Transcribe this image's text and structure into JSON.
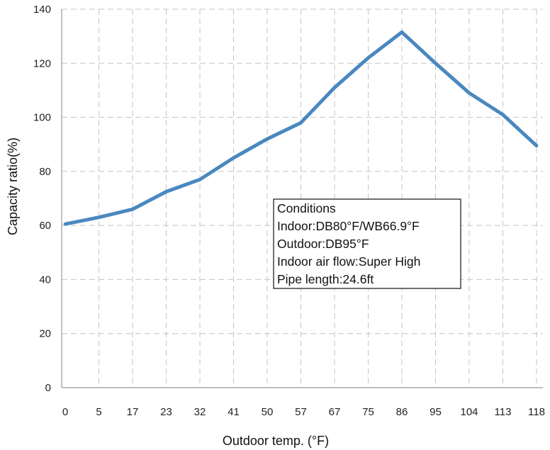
{
  "chart_data": {
    "type": "line",
    "title": "",
    "xlabel": "Outdoor temp. (°F)",
    "ylabel": "Capacity ratio(%)",
    "categories": [
      "0",
      "5",
      "17",
      "23",
      "32",
      "41",
      "50",
      "57",
      "67",
      "75",
      "86",
      "95",
      "104",
      "113",
      "118"
    ],
    "series": [
      {
        "values": [
          60.5,
          63,
          66,
          72.5,
          77,
          85,
          92,
          98,
          111,
          122,
          131.5,
          120,
          109,
          101,
          89.5
        ],
        "color": "#4a88c0"
      }
    ],
    "ylim": [
      0,
      140
    ],
    "yticks": [
      0,
      20,
      40,
      60,
      80,
      100,
      120,
      140
    ],
    "grid": true,
    "grid_style": "dashed"
  },
  "note": {
    "lines": [
      "Conditions",
      "Indoor:DB80°F/WB66.9°F",
      "Outdoor:DB95°F",
      "Indoor air flow:Super High",
      "Pipe length:24.6ft"
    ]
  }
}
